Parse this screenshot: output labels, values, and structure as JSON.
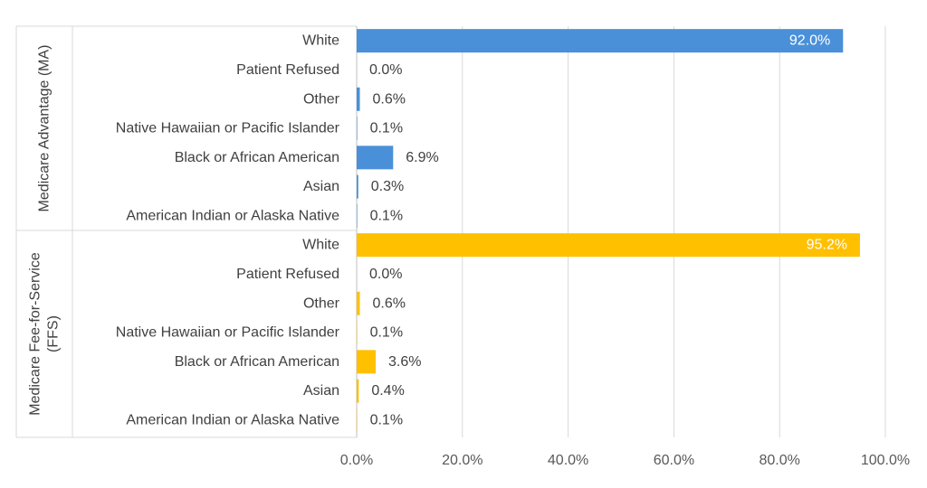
{
  "chart_data": {
    "type": "bar",
    "orientation": "horizontal",
    "title": "",
    "xlabel": "",
    "ylabel": "",
    "xlim": [
      0,
      100
    ],
    "x_ticks": [
      "0.0%",
      "20.0%",
      "40.0%",
      "60.0%",
      "80.0%",
      "100.0%"
    ],
    "grid": true,
    "legend": "none",
    "groups": [
      {
        "label": "Medicare Advantage (MA)",
        "label_lines": [
          "Medicare Advantage (MA)"
        ],
        "color": "#4A90D9",
        "categories": [
          "White",
          "Patient Refused",
          "Other",
          "Native Hawaiian or Pacific Islander",
          "Black or African American",
          "Asian",
          "American Indian or Alaska Native"
        ],
        "values": [
          92.0,
          0.0,
          0.6,
          0.1,
          6.9,
          0.3,
          0.1
        ],
        "value_labels": [
          "92.0%",
          "0.0%",
          "0.6%",
          "0.1%",
          "6.9%",
          "0.3%",
          "0.1%"
        ]
      },
      {
        "label": "Medicare Fee-for-Service (FFS)",
        "label_lines": [
          "Medicare Fee-for-Service",
          "(FFS)"
        ],
        "color": "#FFC000",
        "categories": [
          "White",
          "Patient Refused",
          "Other",
          "Native Hawaiian or Pacific Islander",
          "Black or African American",
          "Asian",
          "American Indian or Alaska Native"
        ],
        "values": [
          95.2,
          0.0,
          0.6,
          0.1,
          3.6,
          0.4,
          0.1
        ],
        "value_labels": [
          "95.2%",
          "0.0%",
          "0.6%",
          "0.1%",
          "3.6%",
          "0.4%",
          "0.1%"
        ]
      }
    ]
  }
}
